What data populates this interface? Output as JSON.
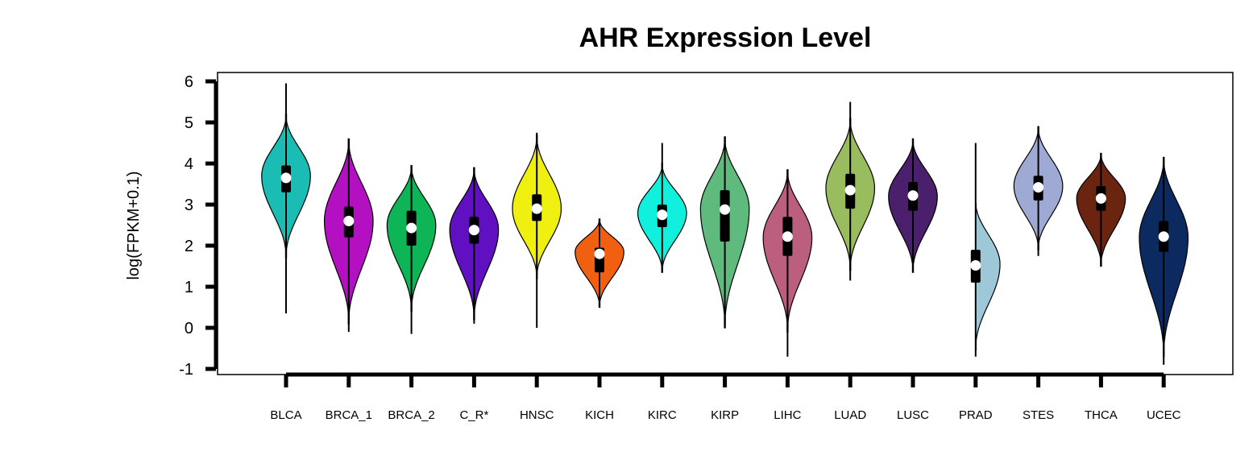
{
  "chart_data": {
    "type": "violin",
    "title": "AHR Expression Level",
    "xlabel": "",
    "ylabel": "log(FPKM+0.1)",
    "ylim": [
      -1,
      6
    ],
    "yticks": [
      "-1",
      "0",
      "1",
      "2",
      "3",
      "4",
      "5",
      "6"
    ],
    "grid": false,
    "categories": [
      "BLCA",
      "BRCA_1",
      "BRCA_2",
      "C_R*",
      "HNSC",
      "KICH",
      "KIRC",
      "KIRP",
      "LIHC",
      "LUAD",
      "LUSC",
      "PRAD",
      "STES",
      "THCA",
      "UCEC"
    ],
    "colors": [
      "#1ABCB4",
      "#B210C0",
      "#0EB557",
      "#6010C0",
      "#F0F010",
      "#F06010",
      "#10F0DC",
      "#5FBA7D",
      "#BC5F7E",
      "#99BC5F",
      "#4A1F6B",
      "#9EC8D8",
      "#9EAAD4",
      "#6A2410",
      "#0C2A60"
    ],
    "median": [
      3.65,
      2.6,
      2.43,
      2.38,
      2.9,
      1.8,
      2.75,
      2.88,
      2.22,
      3.35,
      3.22,
      1.52,
      3.42,
      3.15,
      2.22
    ],
    "q1": [
      3.3,
      2.2,
      2.0,
      2.05,
      2.6,
      1.35,
      2.45,
      2.1,
      1.75,
      2.9,
      2.85,
      1.1,
      3.1,
      2.85,
      1.85
    ],
    "q3": [
      3.95,
      2.95,
      2.85,
      2.7,
      3.25,
      1.95,
      3.0,
      3.35,
      2.7,
      3.75,
      3.55,
      1.9,
      3.7,
      3.45,
      2.6
    ],
    "whisker_low": [
      0.35,
      -0.1,
      -0.15,
      0.1,
      0.0,
      0.5,
      1.4,
      0.05,
      -0.7,
      1.15,
      1.35,
      -0.7,
      1.75,
      1.5,
      -0.9
    ],
    "whisker_high": [
      5.95,
      4.6,
      3.95,
      3.9,
      4.75,
      2.65,
      4.5,
      4.65,
      3.85,
      5.5,
      4.6,
      4.5,
      4.9,
      4.25,
      4.15
    ],
    "violin_min": [
      1.7,
      0.1,
      0.4,
      0.2,
      1.2,
      0.5,
      1.35,
      0.0,
      -0.1,
      1.4,
      1.35,
      -0.55,
      1.9,
      1.5,
      -0.7
    ],
    "violin_max": [
      5.2,
      4.6,
      3.95,
      3.9,
      4.7,
      2.65,
      4.0,
      4.65,
      3.85,
      5.1,
      4.6,
      3.1,
      4.9,
      4.25,
      4.15
    ],
    "violin_mode": [
      3.7,
      2.6,
      2.5,
      2.4,
      2.9,
      1.85,
      2.8,
      2.9,
      2.2,
      3.4,
      3.2,
      1.55,
      3.45,
      3.15,
      2.2
    ],
    "violin_halfwidth": [
      0.55,
      0.55,
      0.55,
      0.55,
      0.55,
      0.55,
      0.55,
      0.55,
      0.55,
      0.55,
      0.55,
      0.55,
      0.55,
      0.55,
      0.55
    ]
  }
}
